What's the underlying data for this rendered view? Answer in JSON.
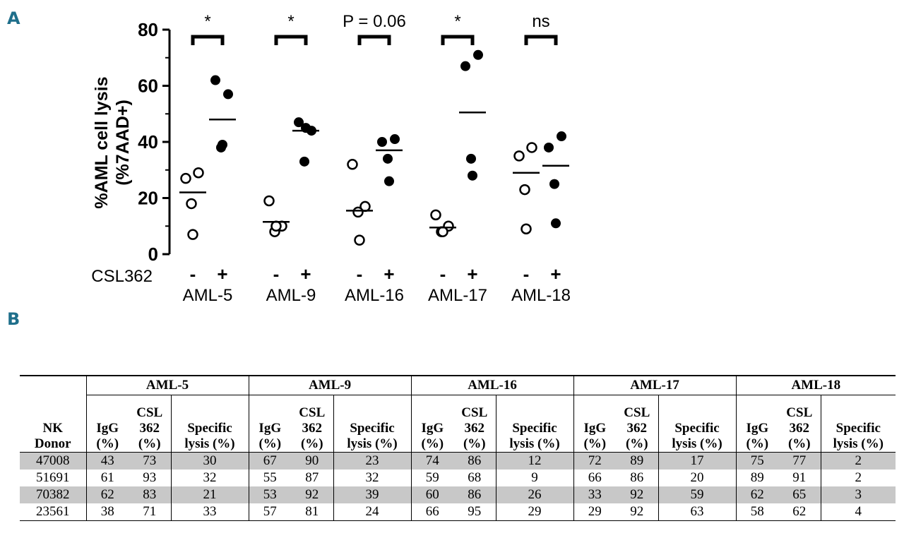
{
  "panel_a_label": "A",
  "panel_b_label": "B",
  "chart_data": {
    "type": "scatter",
    "ylabel_line1": "%AML cell lysis",
    "ylabel_line2": "(%7AAD+)",
    "ylim": [
      0,
      80
    ],
    "yticks": [
      "0",
      "20",
      "40",
      "60",
      "80"
    ],
    "treatment_label": "CSL362",
    "treatment_levels": [
      "-",
      "+"
    ],
    "groups": [
      {
        "name": "AML-5",
        "significance": "*",
        "minus": [
          27,
          29,
          18,
          7
        ],
        "plus": [
          62,
          57,
          38,
          39
        ],
        "minus_mean": 22,
        "plus_mean": 48
      },
      {
        "name": "AML-9",
        "significance": "*",
        "minus": [
          19,
          10,
          8,
          10
        ],
        "plus": [
          47,
          44,
          33,
          45
        ],
        "minus_mean": 11.5,
        "plus_mean": 44
      },
      {
        "name": "AML-16",
        "significance": "P = 0.06",
        "minus": [
          32,
          17,
          15,
          5
        ],
        "plus": [
          40,
          41,
          34,
          26
        ],
        "minus_mean": 15.5,
        "plus_mean": 37
      },
      {
        "name": "AML-17",
        "significance": "*",
        "minus": [
          14,
          10,
          8,
          8
        ],
        "plus": [
          67,
          71,
          34,
          28
        ],
        "minus_mean": 9.5,
        "plus_mean": 50.5
      },
      {
        "name": "AML-18",
        "significance": "ns",
        "minus": [
          35,
          38,
          23,
          9
        ],
        "plus": [
          38,
          42,
          25,
          11
        ],
        "minus_mean": 29,
        "plus_mean": 31.5
      }
    ]
  },
  "table": {
    "donor_header_line1": "NK",
    "donor_header_line2": "Donor",
    "groups": [
      "AML-5",
      "AML-9",
      "AML-16",
      "AML-17",
      "AML-18"
    ],
    "sub_headers": {
      "igg_line1": "IgG",
      "igg_line2": "(%)",
      "csl_line1": "CSL",
      "csl_line2": "362",
      "csl_line3": "(%)",
      "spec_line1": "Specific",
      "spec_line2": "lysis (%)"
    },
    "rows": [
      {
        "donor": "47008",
        "values": [
          "43",
          "73",
          "30",
          "67",
          "90",
          "23",
          "74",
          "86",
          "12",
          "72",
          "89",
          "17",
          "75",
          "77",
          "2"
        ]
      },
      {
        "donor": "51691",
        "values": [
          "61",
          "93",
          "32",
          "55",
          "87",
          "32",
          "59",
          "68",
          "9",
          "66",
          "86",
          "20",
          "89",
          "91",
          "2"
        ]
      },
      {
        "donor": "70382",
        "values": [
          "62",
          "83",
          "21",
          "53",
          "92",
          "39",
          "60",
          "86",
          "26",
          "33",
          "92",
          "59",
          "62",
          "65",
          "3"
        ]
      },
      {
        "donor": "23561",
        "values": [
          "38",
          "71",
          "33",
          "57",
          "81",
          "24",
          "66",
          "95",
          "29",
          "29",
          "92",
          "63",
          "58",
          "62",
          "4"
        ]
      }
    ]
  }
}
